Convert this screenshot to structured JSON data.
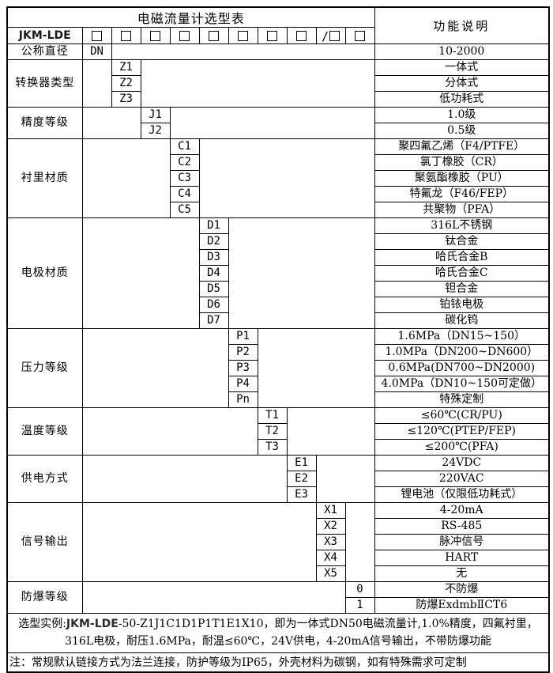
{
  "colors": {
    "border": "#000000",
    "text": "#000000",
    "background": "#ffffff"
  },
  "table": {
    "title": "电磁流量计选型表",
    "desc_header": "功能说明",
    "model": "JKM-LDE",
    "checkbox_cells": [
      {
        "icon": "checkbox",
        "prefix": ""
      },
      {
        "icon": "checkbox",
        "prefix": ""
      },
      {
        "icon": "checkbox",
        "prefix": ""
      },
      {
        "icon": "checkbox",
        "prefix": ""
      },
      {
        "icon": "checkbox",
        "prefix": ""
      },
      {
        "icon": "checkbox",
        "prefix": ""
      },
      {
        "icon": "checkbox",
        "prefix": ""
      },
      {
        "icon": "checkbox",
        "prefix": ""
      },
      {
        "icon": "checkbox",
        "prefix": "/"
      },
      {
        "icon": "checkbox",
        "prefix": ""
      }
    ],
    "sections": [
      {
        "label": "公称直径",
        "col": 1,
        "rows": [
          {
            "code": "DN",
            "desc": "10-2000"
          }
        ]
      },
      {
        "label": "转换器类型",
        "col": 2,
        "rows": [
          {
            "code": "Z1",
            "desc": "一体式"
          },
          {
            "code": "Z2",
            "desc": "分体式"
          },
          {
            "code": "Z3",
            "desc": "低功耗式"
          }
        ]
      },
      {
        "label": "精度等级",
        "col": 3,
        "rows": [
          {
            "code": "J1",
            "desc": "1.0级"
          },
          {
            "code": "J2",
            "desc": "0.5级"
          }
        ]
      },
      {
        "label": "衬里材质",
        "col": 4,
        "rows": [
          {
            "code": "C1",
            "desc": "聚四氟乙烯（F4/PTFE）"
          },
          {
            "code": "C2",
            "desc": "氯丁橡胶（CR）"
          },
          {
            "code": "C3",
            "desc": "聚氨酯橡胶（PU）"
          },
          {
            "code": "C4",
            "desc": "特氟龙（F46/FEP）"
          },
          {
            "code": "C5",
            "desc": "共聚物（PFA）"
          }
        ]
      },
      {
        "label": "电极材质",
        "col": 5,
        "rows": [
          {
            "code": "D1",
            "desc": "316L不锈钢"
          },
          {
            "code": "D2",
            "desc": "钛合金"
          },
          {
            "code": "D3",
            "desc": "哈氏合金B"
          },
          {
            "code": "D4",
            "desc": "哈氏合金C"
          },
          {
            "code": "D5",
            "desc": "钽合金"
          },
          {
            "code": "D6",
            "desc": "铂铱电极"
          },
          {
            "code": "D7",
            "desc": "碳化钨"
          }
        ]
      },
      {
        "label": "压力等级",
        "col": 6,
        "rows": [
          {
            "code": "P1",
            "desc": "1.6MPa（DN15~150）"
          },
          {
            "code": "P2",
            "desc": "1.0MPa（DN200~DN600）"
          },
          {
            "code": "P3",
            "desc": "0.6MPa(DN700~DN2000)"
          },
          {
            "code": "P4",
            "desc": "4.0MPa（DN10~150可定做）"
          },
          {
            "code": "Pn",
            "desc": "特殊定制"
          }
        ]
      },
      {
        "label": "温度等级",
        "col": 7,
        "rows": [
          {
            "code": "T1",
            "desc": "≤60℃(CR/PU)"
          },
          {
            "code": "T2",
            "desc": "≤120℃(PTEP/FEP)"
          },
          {
            "code": "T3",
            "desc": "≤200℃(PFA)"
          }
        ]
      },
      {
        "label": "供电方式",
        "col": 8,
        "rows": [
          {
            "code": "E1",
            "desc": "24VDC"
          },
          {
            "code": "E2",
            "desc": "220VAC"
          },
          {
            "code": "E3",
            "desc": "锂电池（仅限低功耗式）"
          }
        ]
      },
      {
        "label": "信号输出",
        "col": 9,
        "rows": [
          {
            "code": "X1",
            "desc": "4-20mA"
          },
          {
            "code": "X2",
            "desc": "RS-485"
          },
          {
            "code": "X3",
            "desc": "脉冲信号"
          },
          {
            "code": "X4",
            "desc": "HART"
          },
          {
            "code": "X5",
            "desc": "无"
          }
        ]
      },
      {
        "label": "防爆等级",
        "col": 10,
        "rows": [
          {
            "code": "0",
            "desc": "不防爆"
          },
          {
            "code": "1",
            "desc": "防爆ExdmbⅡCT6"
          }
        ]
      }
    ],
    "example": {
      "prefix": "选型实例:",
      "model": "JKM-LDE",
      "rest": "-50-Z1J1C1D1P1T1E1X10，即为一体式DN50电磁流量计,1.0%精度，四氟衬里，316L电极，耐压1.6MPa，耐温≤60℃，24V供电，4-20mA信号输出，不带防爆功能"
    },
    "note": "注：常规默认链接方式为法兰连接，防护等级为IP65，外壳材料为碳钢，如有特殊需求可定制"
  }
}
